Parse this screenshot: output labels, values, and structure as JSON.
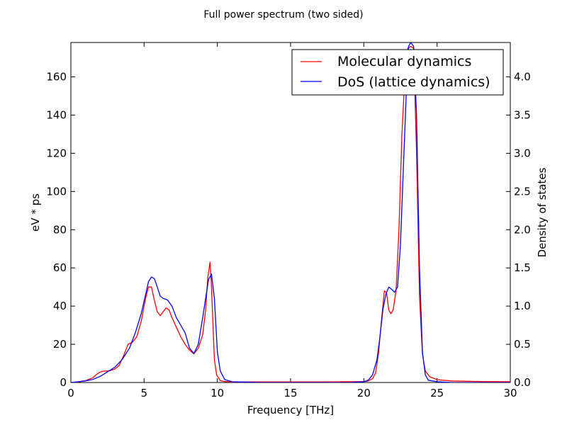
{
  "chart_data": {
    "type": "line",
    "title": "Full power spectrum (two sided)",
    "xlabel": "Frequency [THz]",
    "ylabel": "eV * ps",
    "y2label": "Density of states",
    "xlim": [
      0,
      30
    ],
    "ylim": [
      0,
      178
    ],
    "y2lim": [
      0,
      4.45
    ],
    "xticks": [
      "0",
      "5",
      "10",
      "15",
      "20",
      "25",
      "30"
    ],
    "yticks": [
      "0",
      "20",
      "40",
      "60",
      "80",
      "100",
      "120",
      "140",
      "160"
    ],
    "y2ticks": [
      "0.0",
      "0.5",
      "1.0",
      "1.5",
      "2.0",
      "2.5",
      "3.0",
      "3.5",
      "4.0"
    ],
    "grid": false,
    "legend_position": "top-right",
    "colors": {
      "Molecular dynamics": "#ff0000",
      "DoS (lattice dynamics)": "#0000ff"
    },
    "series": [
      {
        "name": "Molecular dynamics",
        "axis": "left",
        "x": [
          0,
          0.5,
          1.0,
          1.5,
          1.8,
          2.0,
          2.3,
          2.6,
          3.0,
          3.3,
          3.6,
          3.9,
          4.2,
          4.5,
          4.8,
          5.1,
          5.3,
          5.5,
          5.7,
          5.9,
          6.1,
          6.3,
          6.5,
          6.7,
          6.9,
          7.2,
          7.5,
          7.8,
          8.1,
          8.4,
          8.7,
          9.0,
          9.2,
          9.35,
          9.5,
          9.6,
          9.7,
          9.8,
          9.95,
          10.2,
          10.5,
          11,
          13,
          15,
          17,
          19,
          20,
          20.3,
          20.6,
          20.8,
          21.0,
          21.2,
          21.4,
          21.55,
          21.7,
          21.85,
          22.0,
          22.2,
          22.4,
          22.6,
          22.8,
          23.0,
          23.2,
          23.4,
          23.6,
          23.8,
          24.0,
          24.2,
          24.5,
          25,
          26,
          28,
          30
        ],
        "y": [
          0,
          0.3,
          1,
          2.5,
          4.5,
          5.5,
          6,
          6,
          7,
          9,
          14,
          20,
          21,
          24,
          32,
          44,
          50,
          50,
          43,
          37,
          35,
          37,
          39,
          38,
          34,
          29,
          24,
          20,
          17,
          15,
          18,
          25,
          38,
          55,
          63,
          50,
          30,
          12,
          4,
          1,
          0.5,
          0.3,
          0.3,
          0.3,
          0.3,
          0.4,
          0.5,
          0.8,
          2,
          5,
          15,
          32,
          48,
          47,
          38,
          36,
          38,
          48,
          80,
          130,
          160,
          175,
          176,
          175,
          120,
          45,
          15,
          6,
          3,
          1.5,
          0.8,
          0.5,
          0.4
        ]
      },
      {
        "name": "DoS (lattice dynamics)",
        "axis": "right",
        "x": [
          0,
          0.5,
          1.0,
          1.5,
          2.0,
          2.5,
          3.0,
          3.5,
          4.0,
          4.4,
          4.8,
          5.1,
          5.3,
          5.5,
          5.7,
          5.9,
          6.1,
          6.3,
          6.6,
          6.9,
          7.2,
          7.5,
          7.8,
          8.1,
          8.4,
          8.7,
          9.0,
          9.2,
          9.4,
          9.6,
          9.8,
          10.0,
          10.2,
          10.5,
          11,
          13,
          15,
          17,
          19,
          20,
          20.3,
          20.6,
          20.9,
          21.1,
          21.3,
          21.5,
          21.7,
          21.9,
          22.1,
          22.3,
          22.5,
          22.7,
          22.9,
          23.05,
          23.2,
          23.4,
          23.6,
          23.8,
          24.0,
          24.2,
          24.4,
          25,
          26,
          28,
          30
        ],
        "y": [
          0,
          0.01,
          0.02,
          0.04,
          0.08,
          0.14,
          0.2,
          0.3,
          0.45,
          0.65,
          0.9,
          1.15,
          1.32,
          1.38,
          1.36,
          1.25,
          1.13,
          1.1,
          1.08,
          1.0,
          0.85,
          0.75,
          0.65,
          0.45,
          0.38,
          0.5,
          0.85,
          1.1,
          1.35,
          1.42,
          1.1,
          0.4,
          0.15,
          0.04,
          0.01,
          0,
          0,
          0,
          0,
          0.01,
          0.03,
          0.1,
          0.3,
          0.6,
          0.95,
          1.15,
          1.25,
          1.22,
          1.18,
          1.25,
          1.8,
          2.8,
          3.8,
          4.4,
          4.45,
          4.4,
          3.5,
          1.5,
          0.4,
          0.1,
          0.03,
          0.01,
          0,
          0,
          0
        ]
      }
    ]
  }
}
